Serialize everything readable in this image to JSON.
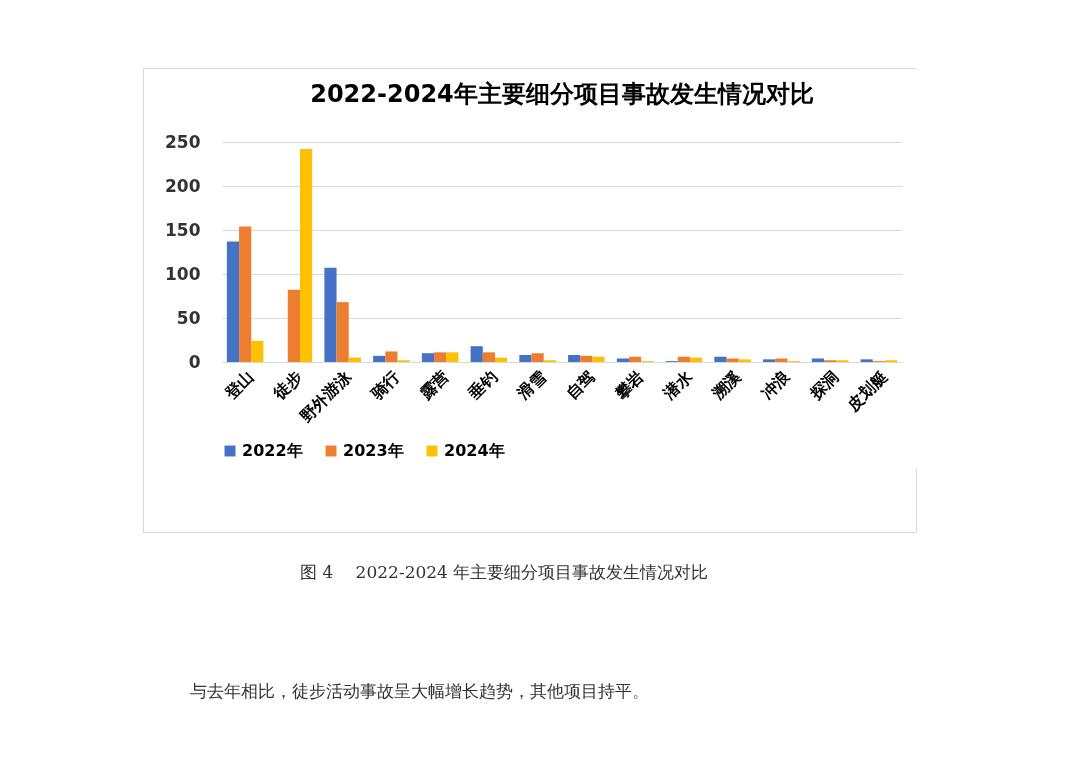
{
  "chart_data": {
    "type": "bar",
    "title": "2022-2024年主要细分项目事故发生情况对比",
    "categories": [
      "登山",
      "徒步",
      "野外游泳",
      "骑行",
      "露营",
      "垂钓",
      "滑雪",
      "自驾",
      "攀岩",
      "潜水",
      "溯溪",
      "冲浪",
      "探洞",
      "皮划艇"
    ],
    "series": [
      {
        "name": "2022年",
        "color": "#4472c4",
        "values": [
          137,
          0,
          107,
          7,
          10,
          18,
          8,
          8,
          4,
          1,
          6,
          3,
          4,
          3
        ]
      },
      {
        "name": "2023年",
        "color": "#ed7d31",
        "values": [
          154,
          82,
          68,
          12,
          11,
          11,
          10,
          7,
          6,
          6,
          4,
          4,
          2,
          1
        ]
      },
      {
        "name": "2024年",
        "color": "#ffc000",
        "values": [
          24,
          242,
          5,
          2,
          11,
          5,
          2,
          6,
          1,
          5,
          3,
          1,
          2,
          2
        ]
      }
    ],
    "ylim": [
      0,
      250
    ],
    "yticks": [
      0,
      50,
      100,
      150,
      200,
      250
    ],
    "grid": "y",
    "legend": "bottom",
    "annotations": [
      "图 4　 2022-2024 年主要细分项目事故发生情况对比",
      "与去年相比，徒步活动事故呈大幅增长趋势，其他项目持平。"
    ]
  }
}
